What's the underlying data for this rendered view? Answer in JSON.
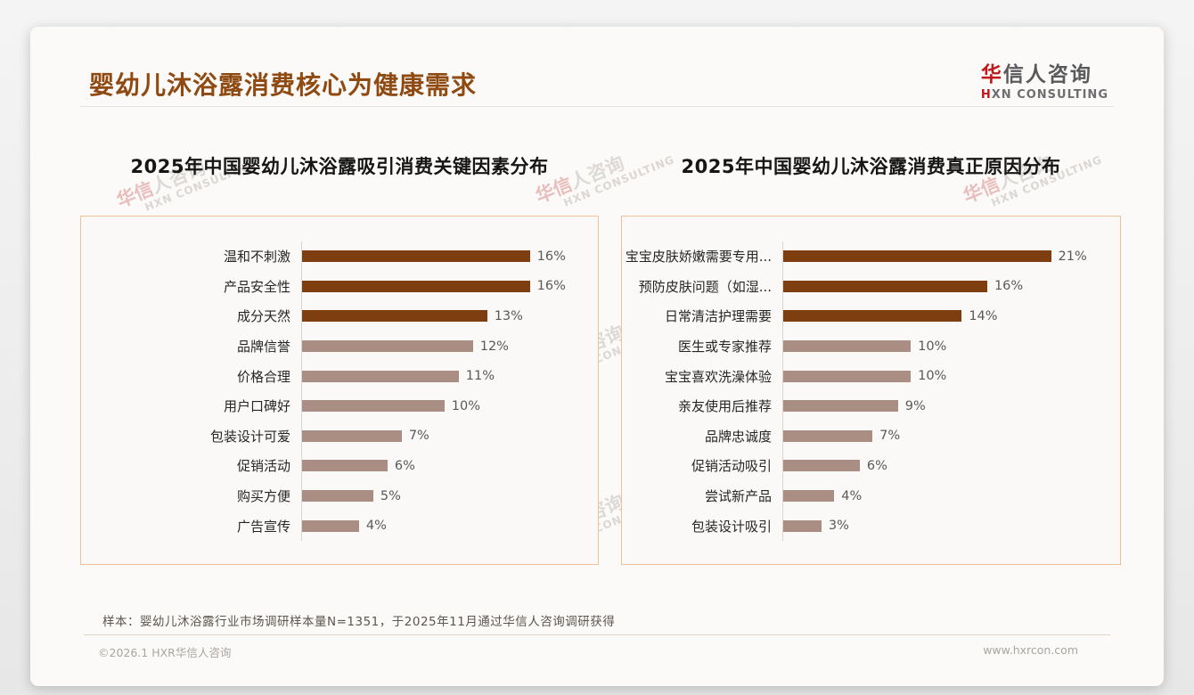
{
  "page_title": "婴幼儿沐浴露消费核心为健康需求",
  "logo": {
    "cn_first": "华",
    "cn_rest": "信人咨询",
    "en_first": "H",
    "en_rest": "XN CONSULTING"
  },
  "watermark": {
    "cn_red": "华信",
    "cn_gray": "人咨询",
    "en": "HXN CONSULTING"
  },
  "colors": {
    "title_brown": "#8f4a12",
    "bar_dark": "#7e3e0f",
    "bar_light": "#ab8e83",
    "panel_border": "#edc19a",
    "logo_red": "#c01818"
  },
  "chart_data": [
    {
      "type": "bar",
      "orientation": "horizontal",
      "title": "2025年中国婴幼儿沐浴露吸引消费关键因素分布",
      "categories": [
        "温和不刺激",
        "产品安全性",
        "成分天然",
        "品牌信誉",
        "价格合理",
        "用户口碑好",
        "包装设计可爱",
        "促销活动",
        "购买方便",
        "广告宣传"
      ],
      "values": [
        16,
        16,
        13,
        12,
        11,
        10,
        7,
        6,
        5,
        4
      ],
      "unit": "%",
      "highlight_count": 3,
      "value_labels_shown": true,
      "grid": false,
      "legend": false
    },
    {
      "type": "bar",
      "orientation": "horizontal",
      "title": "2025年中国婴幼儿沐浴露消费真正原因分布",
      "categories": [
        "宝宝皮肤娇嫩需要专用...",
        "预防皮肤问题（如湿...",
        "日常清洁护理需要",
        "医生或专家推荐",
        "宝宝喜欢洗澡体验",
        "亲友使用后推荐",
        "品牌忠诚度",
        "促销活动吸引",
        "尝试新产品",
        "包装设计吸引"
      ],
      "values": [
        21,
        16,
        14,
        10,
        10,
        9,
        7,
        6,
        4,
        3
      ],
      "unit": "%",
      "highlight_count": 3,
      "value_labels_shown": true,
      "grid": false,
      "legend": false
    }
  ],
  "footnote": "样本：婴幼儿沐浴露行业市场调研样本量N=1351，于2025年11月通过华信人咨询调研获得",
  "footer": {
    "copyright": "©2026.1 HXR华信人咨询",
    "website": "www.hxrcon.com"
  }
}
